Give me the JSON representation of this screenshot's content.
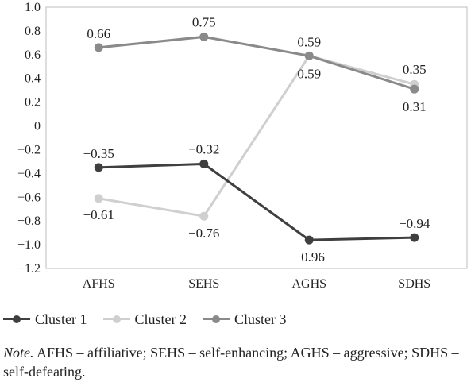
{
  "chart_data": {
    "type": "line",
    "categories": [
      "AFHS",
      "SEHS",
      "AGHS",
      "SDHS"
    ],
    "ylim": [
      -1.2,
      1.0
    ],
    "yticks": [
      "1.0",
      "0.8",
      "0.6",
      "0.4",
      "0.2",
      "0",
      "−0.2",
      "−0.4",
      "−0.6",
      "−0.8",
      "−1.0",
      "−1.2"
    ],
    "grid": false,
    "legend_position": "bottom",
    "series": [
      {
        "name": "Cluster 1",
        "color": "#3f3f3f",
        "values": [
          -0.35,
          -0.32,
          -0.96,
          -0.94
        ],
        "labels": [
          "−0.35",
          "−0.32",
          "−0.96",
          "−0.94"
        ]
      },
      {
        "name": "Cluster 2",
        "color": "#cfcfcf",
        "values": [
          -0.61,
          -0.76,
          0.59,
          0.35
        ],
        "labels": [
          "−0.61",
          "−0.76",
          "0.59",
          "0.35"
        ]
      },
      {
        "name": "Cluster 3",
        "color": "#8a8a8a",
        "values": [
          0.66,
          0.75,
          0.59,
          0.31
        ],
        "labels": [
          "0.66",
          "0.75",
          "0.59",
          "0.31"
        ]
      }
    ]
  },
  "note": {
    "prefix": "Note.",
    "text": " AFHS – affiliative; SEHS – self-enhancing; AGHS – aggressive; SDHS – self-defeating."
  }
}
